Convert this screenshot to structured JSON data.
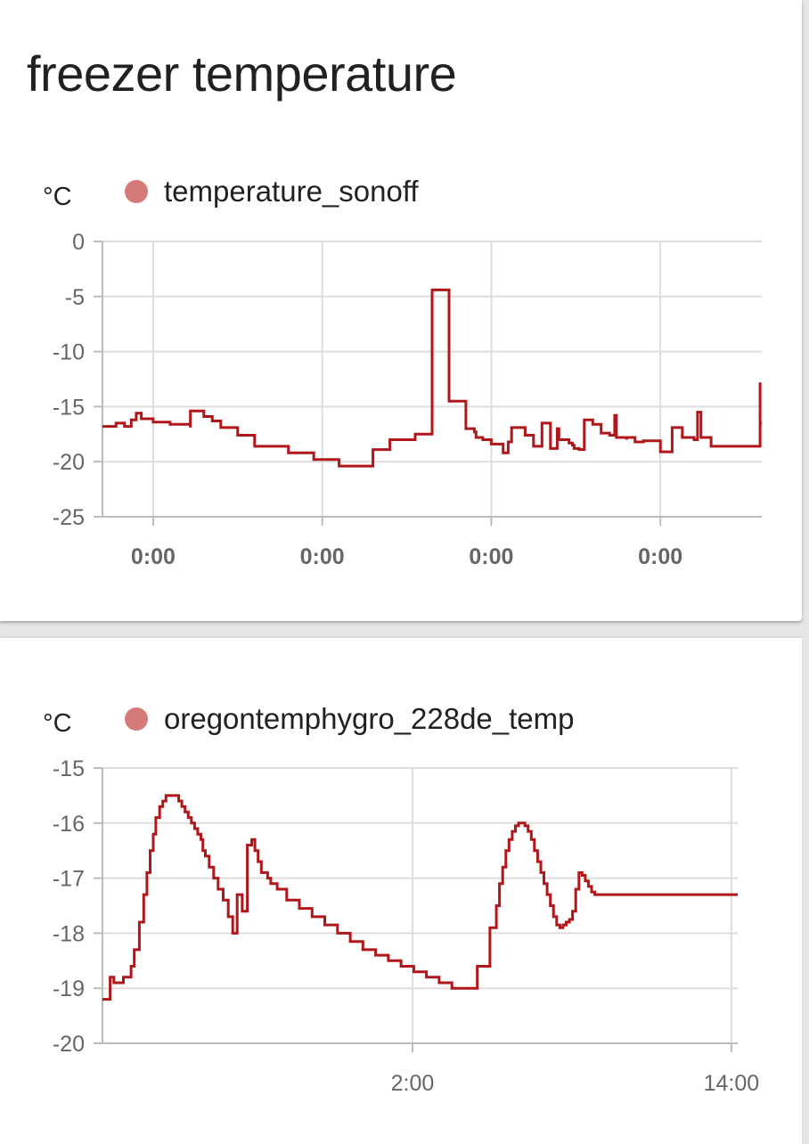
{
  "card1": {
    "title": "freezer temperature",
    "unit": "°C",
    "legend": "temperature_sonoff"
  },
  "card2": {
    "unit": "°C",
    "legend": "oregontemphygro_228de_temp"
  },
  "colors": {
    "line": "#b0161a",
    "legend_dot": "#d57a78",
    "grid": "#dddddd",
    "axis": "#bbbbbb"
  },
  "chart_data": [
    {
      "type": "line",
      "step": true,
      "ylabel": "°C",
      "ylim": [
        -25,
        0
      ],
      "yticks": [
        0,
        -5,
        -10,
        -15,
        -20,
        -25
      ],
      "ytick_labels": [
        "0",
        "-5",
        "-10",
        "-15",
        "-20",
        "-25"
      ],
      "xlim": [
        -0.3,
        3.6
      ],
      "xticks": [
        0,
        1,
        2,
        3
      ],
      "xtick_labels": [
        "0:00",
        "0:00",
        "0:00",
        "0:00"
      ],
      "grid": true,
      "legend_position": "top-left",
      "series": [
        {
          "name": "temperature_sonoff",
          "x": [
            -0.3,
            -0.22,
            -0.22,
            -0.17,
            -0.17,
            -0.13,
            -0.13,
            -0.1,
            -0.1,
            -0.07,
            -0.07,
            0.0,
            0.0,
            0.1,
            0.1,
            0.22,
            0.22,
            0.3,
            0.3,
            0.35,
            0.35,
            0.4,
            0.4,
            0.5,
            0.5,
            0.6,
            0.6,
            0.8,
            0.8,
            0.95,
            0.95,
            1.1,
            1.1,
            1.3,
            1.3,
            1.4,
            1.4,
            1.55,
            1.55,
            1.65,
            1.65,
            1.75,
            1.75,
            1.85,
            1.85,
            1.9,
            1.91,
            1.95,
            2.0,
            2.0,
            2.07,
            2.07,
            2.1,
            2.12,
            2.15,
            2.2,
            2.25,
            2.25,
            2.3,
            2.3,
            2.35,
            2.35,
            2.38,
            2.39,
            2.4,
            2.45,
            2.46,
            2.48,
            2.49,
            2.52,
            2.55,
            2.6,
            2.6,
            2.65,
            2.65,
            2.7,
            2.73,
            2.74,
            2.75,
            2.8,
            2.8,
            2.85,
            2.85,
            2.9,
            2.9,
            3.0,
            3.0,
            3.07,
            3.07,
            3.13,
            3.13,
            3.2,
            3.2,
            3.22,
            3.24,
            3.25,
            3.3,
            3.3,
            3.4,
            3.4,
            3.59,
            3.59,
            3.6
          ],
          "y": [
            -16.8,
            -16.8,
            -16.5,
            -16.5,
            -16.8,
            -16.8,
            -16.2,
            -16.2,
            -15.6,
            -15.6,
            -16.1,
            -16.1,
            -16.4,
            -16.5,
            -16.6,
            -16.9,
            -15.4,
            -15.4,
            -15.9,
            -15.9,
            -16.3,
            -16.3,
            -16.9,
            -16.9,
            -17.6,
            -17.6,
            -18.6,
            -18.6,
            -19.2,
            -19.2,
            -19.8,
            -19.7,
            -20.4,
            -20.4,
            -18.9,
            -18.9,
            -18.0,
            -18.0,
            -17.5,
            -17.5,
            -4.4,
            -12.5,
            -14.5,
            -16.0,
            -17.0,
            -17.3,
            -17.8,
            -18.0,
            -18.4,
            -18.4,
            -19.2,
            -19.2,
            -18.2,
            -16.9,
            -16.9,
            -17.6,
            -17.6,
            -18.6,
            -18.6,
            -16.5,
            -16.5,
            -18.8,
            -18.8,
            -17.0,
            -18.0,
            -18.0,
            -18.3,
            -18.5,
            -18.8,
            -18.9,
            -16.2,
            -16.2,
            -16.6,
            -16.6,
            -17.4,
            -17.6,
            -15.8,
            -17.8,
            -17.8,
            -18.0,
            -17.8,
            -17.8,
            -18.2,
            -18.2,
            -18.1,
            -18.1,
            -19.1,
            -19.1,
            -16.9,
            -16.9,
            -17.8,
            -17.8,
            -18.0,
            -15.5,
            -17.8,
            -17.8,
            -17.8,
            -18.6,
            -18.6,
            -18.6,
            -12.8,
            -16.5,
            -16.5
          ]
        }
      ]
    },
    {
      "type": "line",
      "step": true,
      "ylabel": "°C",
      "ylim": [
        -20,
        -15
      ],
      "yticks": [
        -15,
        -16,
        -17,
        -18,
        -19,
        -20
      ],
      "ytick_labels": [
        "-15",
        "-16",
        "-17",
        "-18",
        "-19",
        "-20"
      ],
      "xlim": [
        0,
        1
      ],
      "xticks": [
        0.488,
        0.99
      ],
      "xtick_labels": [
        "2:00",
        "14:00"
      ],
      "grid": true,
      "legend_position": "top-left",
      "series": [
        {
          "name": "oregontemphygro_228de_temp",
          "x": [
            0,
            0.012,
            0.012,
            0.018,
            0.018,
            0.033,
            0.033,
            0.045,
            0.05,
            0.058,
            0.065,
            0.07,
            0.075,
            0.08,
            0.084,
            0.09,
            0.095,
            0.1,
            0.105,
            0.11,
            0.115,
            0.12,
            0.125,
            0.13,
            0.135,
            0.14,
            0.145,
            0.15,
            0.155,
            0.158,
            0.162,
            0.168,
            0.175,
            0.182,
            0.19,
            0.198,
            0.205,
            0.212,
            0.22,
            0.228,
            0.235,
            0.24,
            0.24,
            0.245,
            0.245,
            0.25,
            0.26,
            0.265,
            0.275,
            0.29,
            0.31,
            0.33,
            0.35,
            0.37,
            0.39,
            0.41,
            0.43,
            0.45,
            0.47,
            0.49,
            0.51,
            0.53,
            0.55,
            0.57,
            0.59,
            0.61,
            0.62,
            0.625,
            0.63,
            0.635,
            0.64,
            0.645,
            0.65,
            0.655,
            0.66,
            0.665,
            0.67,
            0.675,
            0.68,
            0.685,
            0.69,
            0.695,
            0.7,
            0.705,
            0.71,
            0.715,
            0.72,
            0.725,
            0.73,
            0.735,
            0.74,
            0.745,
            0.75,
            0.75,
            0.755,
            0.76,
            0.765,
            0.77,
            0.775,
            0.78,
            0.785,
            1.0
          ],
          "y": [
            -19.2,
            -19.2,
            -18.8,
            -18.8,
            -18.9,
            -18.9,
            -18.8,
            -18.6,
            -18.3,
            -17.8,
            -17.3,
            -16.9,
            -16.5,
            -16.2,
            -15.9,
            -15.7,
            -15.6,
            -15.5,
            -15.5,
            -15.5,
            -15.5,
            -15.6,
            -15.7,
            -15.8,
            -15.9,
            -16.0,
            -16.1,
            -16.2,
            -16.3,
            -16.5,
            -16.6,
            -16.8,
            -17.0,
            -17.2,
            -17.4,
            -17.7,
            -18.0,
            -17.3,
            -17.6,
            -16.4,
            -16.3,
            -16.35,
            -16.5,
            -16.6,
            -16.7,
            -16.9,
            -17.0,
            -17.1,
            -17.2,
            -17.4,
            -17.55,
            -17.7,
            -17.85,
            -18.0,
            -18.15,
            -18.3,
            -18.4,
            -18.5,
            -18.6,
            -18.7,
            -18.8,
            -18.9,
            -19.0,
            -19.0,
            -18.6,
            -17.9,
            -17.5,
            -17.1,
            -16.8,
            -16.5,
            -16.3,
            -16.15,
            -16.05,
            -16.0,
            -16.0,
            -16.05,
            -16.15,
            -16.3,
            -16.5,
            -16.7,
            -16.9,
            -17.1,
            -17.3,
            -17.5,
            -17.7,
            -17.85,
            -17.9,
            -17.85,
            -17.8,
            -17.75,
            -17.6,
            -17.2,
            -16.9,
            -16.9,
            -16.95,
            -17.05,
            -17.15,
            -17.25,
            -17.3,
            -17.3,
            -17.3,
            -17.3
          ]
        }
      ]
    }
  ]
}
